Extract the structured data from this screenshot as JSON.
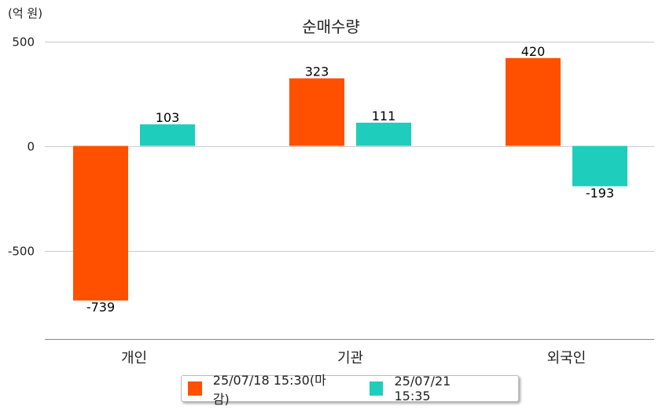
{
  "chart_data": {
    "type": "bar",
    "title": "순매수량",
    "unit": "(억 원)",
    "categories": [
      "개인",
      "기관",
      "외국인"
    ],
    "series": [
      {
        "name": "25/07/18 15:30(마감)",
        "color": "#ff5000",
        "values": [
          -739,
          323,
          420
        ],
        "labels": [
          "-739",
          "323",
          "420"
        ]
      },
      {
        "name": "25/07/21 15:35",
        "color": "#1ecdbc",
        "values": [
          103,
          111,
          -193
        ],
        "labels": [
          "103",
          "111",
          "-193"
        ]
      }
    ],
    "yticks": [
      500,
      0,
      -500
    ],
    "ytick_labels": [
      "500",
      "0",
      "-500"
    ],
    "ylim": [
      -920,
      500
    ],
    "grid": true,
    "legend_position": "bottom"
  }
}
